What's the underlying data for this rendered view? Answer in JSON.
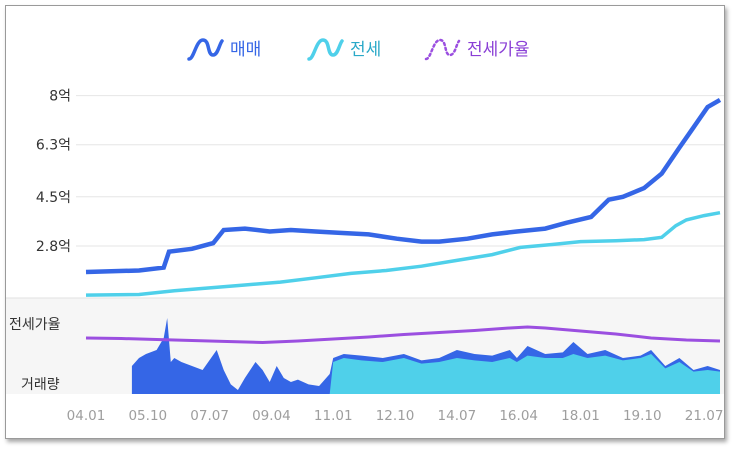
{
  "chart_data": {
    "type": "line",
    "legend": [
      {
        "name": "매매",
        "color": "#3566e6",
        "style": "solid"
      },
      {
        "name": "전세",
        "color": "#4fd0ea",
        "style": "solid"
      },
      {
        "name": "전세가율",
        "color": "#9b4fe0",
        "style": "dotted"
      }
    ],
    "y_ticks": [
      "8억",
      "6.3억",
      "4.5억",
      "2.8억"
    ],
    "y_tick_values": [
      8,
      6.3,
      4.5,
      2.8
    ],
    "ylim": [
      1.0,
      8.4
    ],
    "x_ticks": [
      "04.01",
      "05.10",
      "07.07",
      "09.04",
      "11.01",
      "12.10",
      "14.07",
      "16.04",
      "18.01",
      "19.10",
      "21.07"
    ],
    "x_tick_years": [
      2004.0,
      2005.75,
      2007.5,
      2009.25,
      2011.0,
      2012.75,
      2014.5,
      2016.25,
      2018.0,
      2019.75,
      2021.5
    ],
    "xlim": [
      2004.0,
      2021.95
    ],
    "series": [
      {
        "name": "매매",
        "x": [
          2004.0,
          2005.5,
          2006.2,
          2006.35,
          2007.0,
          2007.6,
          2007.9,
          2008.5,
          2009.2,
          2009.8,
          2010.5,
          2011.2,
          2012.0,
          2012.8,
          2013.5,
          2014.0,
          2014.8,
          2015.5,
          2016.2,
          2017.0,
          2017.6,
          2018.3,
          2018.8,
          2019.2,
          2019.8,
          2020.3,
          2020.8,
          2021.2,
          2021.6,
          2021.95
        ],
        "y": [
          1.9,
          1.95,
          2.05,
          2.6,
          2.7,
          2.9,
          3.35,
          3.4,
          3.3,
          3.35,
          3.3,
          3.25,
          3.2,
          3.05,
          2.95,
          2.95,
          3.05,
          3.2,
          3.3,
          3.4,
          3.6,
          3.8,
          4.4,
          4.5,
          4.8,
          5.3,
          6.2,
          6.9,
          7.6,
          7.85
        ]
      },
      {
        "name": "전세",
        "x": [
          2004.0,
          2005.5,
          2006.5,
          2007.5,
          2008.5,
          2009.5,
          2010.5,
          2011.5,
          2012.5,
          2013.5,
          2014.5,
          2015.5,
          2016.3,
          2017.2,
          2018.0,
          2019.0,
          2019.8,
          2020.3,
          2020.7,
          2021.0,
          2021.5,
          2021.95
        ],
        "y": [
          1.1,
          1.12,
          1.25,
          1.35,
          1.45,
          1.55,
          1.7,
          1.85,
          1.95,
          2.1,
          2.3,
          2.5,
          2.75,
          2.85,
          2.95,
          2.98,
          3.02,
          3.1,
          3.5,
          3.7,
          3.85,
          3.95
        ]
      },
      {
        "name": "전세가율",
        "x": [
          2004.0,
          2005.0,
          2006.0,
          2007.0,
          2008.0,
          2009.0,
          2010.0,
          2011.0,
          2012.0,
          2013.0,
          2014.0,
          2015.0,
          2016.0,
          2016.5,
          2017.0,
          2018.0,
          2019.0,
          2020.0,
          2021.0,
          2021.95
        ],
        "y": [
          0.56,
          0.55,
          0.53,
          0.51,
          0.49,
          0.47,
          0.5,
          0.54,
          0.58,
          0.63,
          0.67,
          0.71,
          0.76,
          0.78,
          0.76,
          0.7,
          0.64,
          0.56,
          0.52,
          0.5
        ]
      }
    ],
    "sub_labels": {
      "ratio": "전세가율",
      "volume": "거래량"
    },
    "volume": {
      "x": [
        2005.3,
        2005.5,
        2005.7,
        2006.0,
        2006.2,
        2006.3,
        2006.4,
        2006.5,
        2006.7,
        2007.0,
        2007.3,
        2007.7,
        2007.9,
        2008.1,
        2008.3,
        2008.5,
        2008.8,
        2009.0,
        2009.2,
        2009.4,
        2009.6,
        2009.8,
        2010.0,
        2010.3,
        2010.6,
        2010.9,
        2011.0,
        2011.3,
        2011.8,
        2012.4,
        2013.0,
        2013.5,
        2014.0,
        2014.5,
        2015.0,
        2015.5,
        2016.0,
        2016.2,
        2016.5,
        2017.0,
        2017.5,
        2017.8,
        2018.2,
        2018.7,
        2019.2,
        2019.7,
        2020.0,
        2020.4,
        2020.8,
        2021.2,
        2021.6,
        2021.95
      ],
      "sale": [
        0.35,
        0.45,
        0.5,
        0.55,
        0.7,
        0.95,
        0.4,
        0.45,
        0.4,
        0.35,
        0.3,
        0.55,
        0.3,
        0.12,
        0.05,
        0.2,
        0.4,
        0.3,
        0.15,
        0.35,
        0.2,
        0.15,
        0.18,
        0.12,
        0.1,
        0.25,
        0.45,
        0.5,
        0.48,
        0.45,
        0.5,
        0.42,
        0.45,
        0.55,
        0.5,
        0.48,
        0.55,
        0.45,
        0.6,
        0.5,
        0.52,
        0.65,
        0.5,
        0.55,
        0.45,
        0.48,
        0.55,
        0.35,
        0.45,
        0.3,
        0.35,
        0.3
      ],
      "jeonse": [
        0,
        0,
        0,
        0,
        0,
        0,
        0,
        0,
        0,
        0,
        0,
        0,
        0,
        0,
        0,
        0,
        0,
        0,
        0,
        0,
        0,
        0,
        0,
        0,
        0,
        0,
        0.4,
        0.45,
        0.42,
        0.4,
        0.45,
        0.38,
        0.4,
        0.45,
        0.42,
        0.4,
        0.45,
        0.4,
        0.48,
        0.45,
        0.45,
        0.5,
        0.45,
        0.48,
        0.42,
        0.45,
        0.5,
        0.32,
        0.4,
        0.28,
        0.3,
        0.28
      ]
    }
  }
}
